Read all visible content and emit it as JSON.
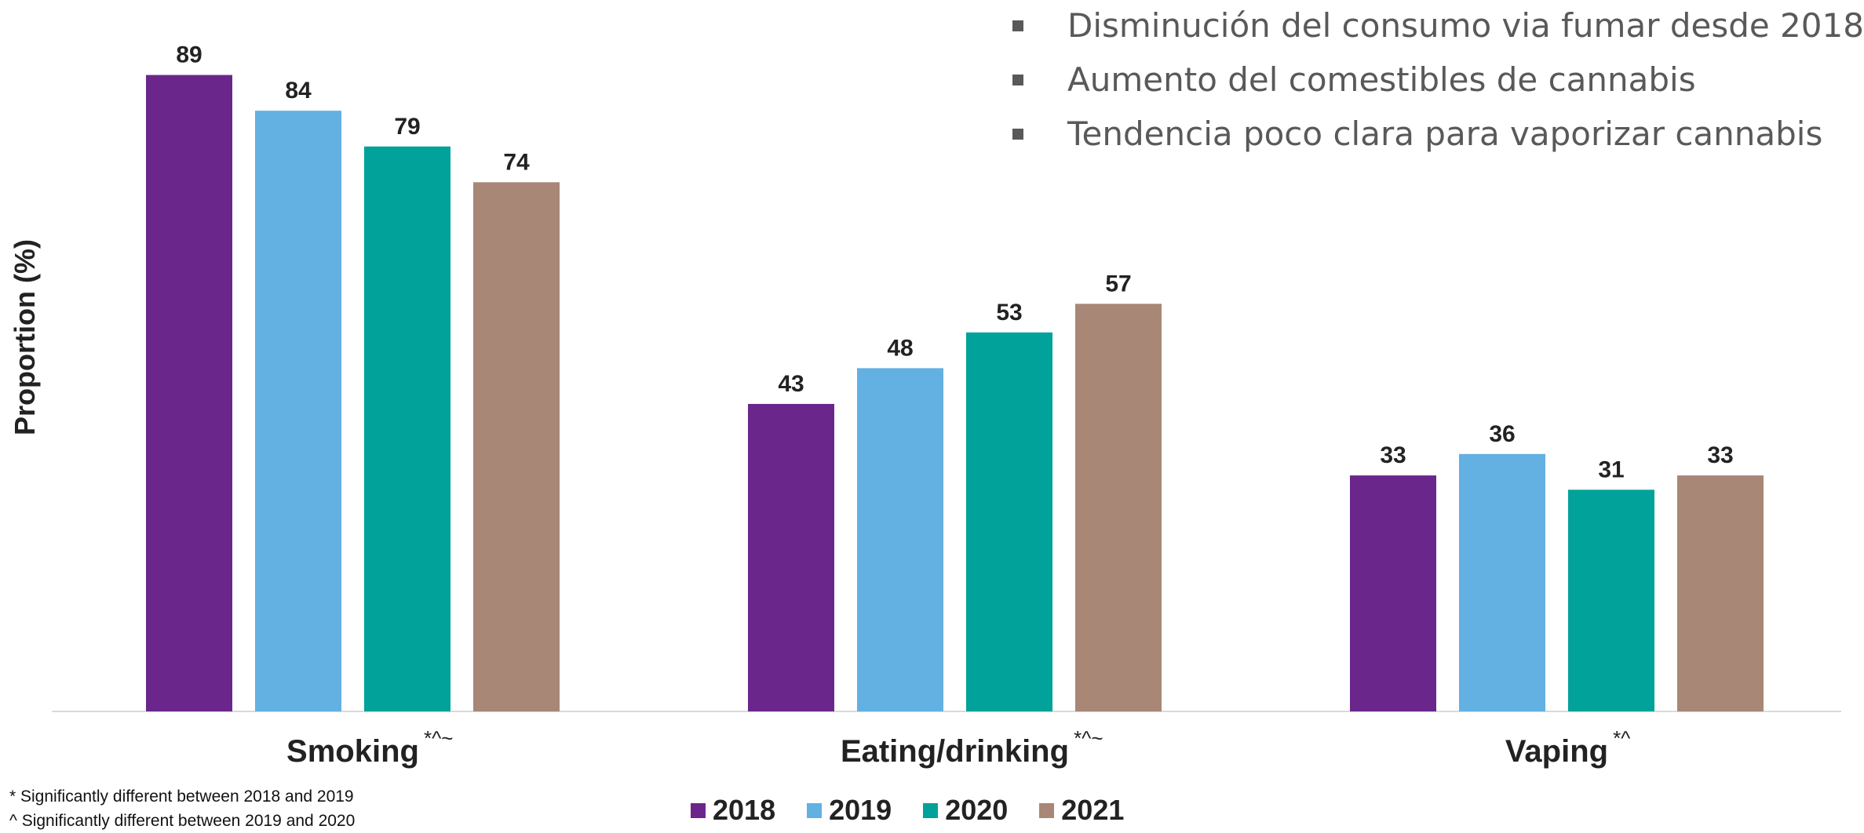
{
  "chart_data": {
    "type": "bar",
    "categories": [
      "Smoking",
      "Eating/drinking",
      "Vaping"
    ],
    "category_marks": [
      "*^~",
      "*^~",
      "*^"
    ],
    "series": [
      {
        "name": "2018",
        "color": "#6B268C",
        "values": [
          89,
          43,
          33
        ]
      },
      {
        "name": "2019",
        "color": "#63B0E3",
        "values": [
          84,
          48,
          36
        ]
      },
      {
        "name": "2020",
        "color": "#00A29A",
        "values": [
          79,
          53,
          31
        ]
      },
      {
        "name": "2021",
        "color": "#A88776",
        "values": [
          74,
          57,
          33
        ]
      }
    ],
    "ylabel": "Proportion (%)",
    "ylim": [
      0,
      94
    ],
    "grid": false,
    "legend_position": "bottom"
  },
  "bullets": [
    "Disminución del consumo via fumar desde 2018",
    "Aumento del comestibles de cannabis",
    "Tendencia poco clara para vaporizar cannabis"
  ],
  "footnotes": [
    "* Significantly different between 2018 and 2019",
    "^ Significantly different between 2019 and 2020"
  ]
}
